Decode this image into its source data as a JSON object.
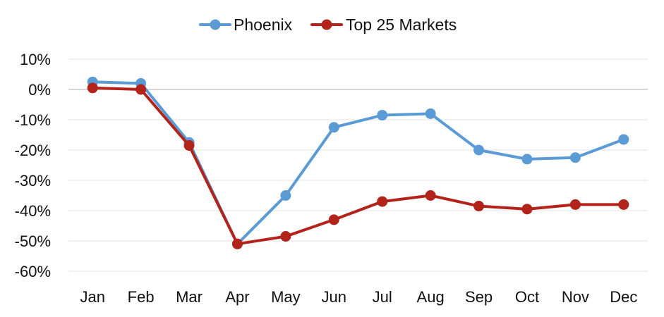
{
  "chart_data": {
    "type": "line",
    "title": "",
    "xlabel": "",
    "ylabel": "",
    "categories": [
      "Jan",
      "Feb",
      "Mar",
      "Apr",
      "May",
      "Jun",
      "Jul",
      "Aug",
      "Sep",
      "Oct",
      "Nov",
      "Dec"
    ],
    "ylim": [
      -60,
      10
    ],
    "yticks": [
      10,
      0,
      -10,
      -20,
      -30,
      -40,
      -50,
      -60
    ],
    "ytick_labels": [
      "10%",
      "0%",
      "-10%",
      "-20%",
      "-30%",
      "-40%",
      "-50%",
      "-60%"
    ],
    "grid": true,
    "legend_position": "top-center",
    "series": [
      {
        "name": "Phoenix",
        "color": "#5b9bd5",
        "values": [
          2.5,
          2,
          -17.5,
          -51,
          -35,
          -12.5,
          -8.5,
          -8,
          -20,
          -23,
          -22.5,
          -16.5
        ]
      },
      {
        "name": "Top 25 Markets",
        "color": "#b2231a",
        "values": [
          0.5,
          0,
          -18.5,
          -51,
          -48.5,
          -43,
          -37,
          -35,
          -38.5,
          -39.5,
          -38,
          -38
        ]
      }
    ]
  }
}
